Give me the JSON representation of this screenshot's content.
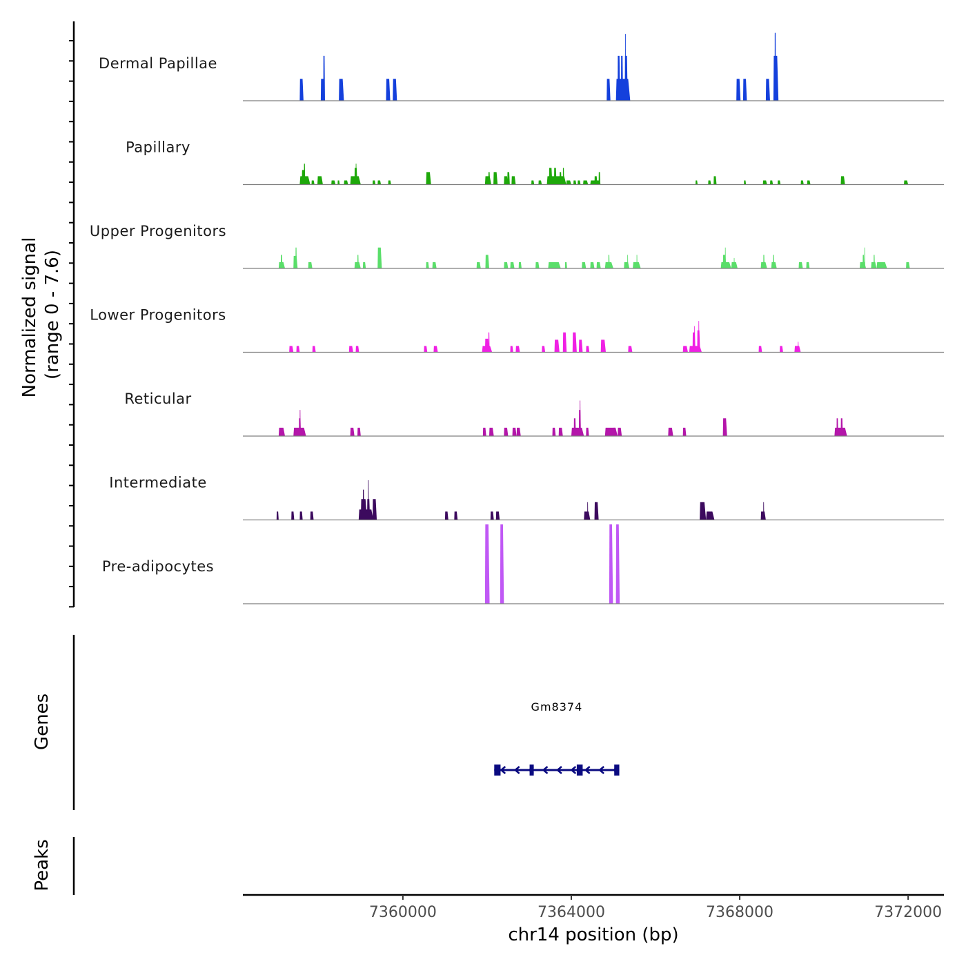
{
  "chart_data": {
    "type": "area",
    "title": "",
    "xlabel": "chr14 position (bp)",
    "ylabel": "Normalized signal\n(range 0 - 7.6)",
    "ylabel_lines": [
      "Normalized signal",
      "(range 0 - 7.6)"
    ],
    "ylim": [
      0,
      7.6
    ],
    "xlim": [
      7356200,
      7372850
    ],
    "x_ticks": [
      7360000,
      7364000,
      7368000,
      7372000
    ],
    "x_tick_labels": [
      "7360000",
      "7364000",
      "7368000",
      "7372000"
    ],
    "grid": false,
    "legend": "none",
    "tracks": [
      {
        "name": "Dermal Papillae",
        "color": "#1440dc",
        "peaks": [
          [
            7357550,
            7357640,
            2.1
          ],
          [
            7358050,
            7358140,
            2.1
          ],
          [
            7358110,
            7358150,
            4.3
          ],
          [
            7358480,
            7358600,
            2.1
          ],
          [
            7359600,
            7359700,
            2.1
          ],
          [
            7359760,
            7359860,
            2.1
          ],
          [
            7364840,
            7364930,
            2.1
          ],
          [
            7365060,
            7365400,
            2.1
          ],
          [
            7365100,
            7365160,
            4.3
          ],
          [
            7365180,
            7365230,
            4.3
          ],
          [
            7365270,
            7365340,
            4.3
          ],
          [
            7365280,
            7365300,
            6.4
          ],
          [
            7367920,
            7368020,
            2.1
          ],
          [
            7368080,
            7368170,
            2.1
          ],
          [
            7368620,
            7368720,
            2.1
          ],
          [
            7368800,
            7368920,
            4.3
          ],
          [
            7368830,
            7368860,
            6.5
          ]
        ]
      },
      {
        "name": "Papillary",
        "color": "#1ea80a",
        "peaks": [
          [
            7357550,
            7357800,
            0.8
          ],
          [
            7357600,
            7357680,
            1.4
          ],
          [
            7357650,
            7357680,
            2.0
          ],
          [
            7357830,
            7357900,
            0.4
          ],
          [
            7357970,
            7358100,
            0.8
          ],
          [
            7358300,
            7358400,
            0.4
          ],
          [
            7358450,
            7358500,
            0.4
          ],
          [
            7358600,
            7358700,
            0.4
          ],
          [
            7358750,
            7359000,
            0.8
          ],
          [
            7358850,
            7358920,
            1.6
          ],
          [
            7358880,
            7358900,
            2.0
          ],
          [
            7359280,
            7359350,
            0.4
          ],
          [
            7359400,
            7359480,
            0.4
          ],
          [
            7359650,
            7359720,
            0.4
          ],
          [
            7360550,
            7360670,
            1.2
          ],
          [
            7361950,
            7362100,
            0.8
          ],
          [
            7362030,
            7362070,
            1.2
          ],
          [
            7362150,
            7362250,
            1.2
          ],
          [
            7362400,
            7362500,
            0.8
          ],
          [
            7362480,
            7362540,
            1.2
          ],
          [
            7362580,
            7362680,
            0.8
          ],
          [
            7363050,
            7363120,
            0.4
          ],
          [
            7363220,
            7363300,
            0.4
          ],
          [
            7363420,
            7363880,
            0.8
          ],
          [
            7363470,
            7363550,
            1.6
          ],
          [
            7363590,
            7363650,
            1.6
          ],
          [
            7363720,
            7363770,
            1.2
          ],
          [
            7363800,
            7363830,
            1.6
          ],
          [
            7363880,
            7364000,
            0.4
          ],
          [
            7364050,
            7364120,
            0.4
          ],
          [
            7364150,
            7364220,
            0.4
          ],
          [
            7364280,
            7364400,
            0.4
          ],
          [
            7364450,
            7364700,
            0.4
          ],
          [
            7364550,
            7364620,
            0.8
          ],
          [
            7364650,
            7364690,
            1.2
          ],
          [
            7366950,
            7367000,
            0.4
          ],
          [
            7367250,
            7367320,
            0.4
          ],
          [
            7367380,
            7367450,
            0.8
          ],
          [
            7368100,
            7368150,
            0.4
          ],
          [
            7368550,
            7368650,
            0.4
          ],
          [
            7368720,
            7368790,
            0.4
          ],
          [
            7368900,
            7368970,
            0.4
          ],
          [
            7369450,
            7369520,
            0.4
          ],
          [
            7369600,
            7369680,
            0.4
          ],
          [
            7370400,
            7370500,
            0.8
          ],
          [
            7371900,
            7372000,
            0.4
          ]
        ]
      },
      {
        "name": "Upper Progenitors",
        "color": "#5ade6a",
        "peaks": [
          [
            7357050,
            7357200,
            0.6
          ],
          [
            7357100,
            7357140,
            1.3
          ],
          [
            7357400,
            7357500,
            1.2
          ],
          [
            7357450,
            7357480,
            2.0
          ],
          [
            7357750,
            7357850,
            0.6
          ],
          [
            7358850,
            7359000,
            0.6
          ],
          [
            7358920,
            7358950,
            1.3
          ],
          [
            7359050,
            7359120,
            0.6
          ],
          [
            7359400,
            7359500,
            2.0
          ],
          [
            7360550,
            7360620,
            0.6
          ],
          [
            7360700,
            7360800,
            0.6
          ],
          [
            7361750,
            7361850,
            0.6
          ],
          [
            7361960,
            7362050,
            1.3
          ],
          [
            7362400,
            7362500,
            0.6
          ],
          [
            7362550,
            7362650,
            0.6
          ],
          [
            7362750,
            7362820,
            0.6
          ],
          [
            7363150,
            7363240,
            0.6
          ],
          [
            7363450,
            7363750,
            0.6
          ],
          [
            7363850,
            7363900,
            0.6
          ],
          [
            7364250,
            7364350,
            0.6
          ],
          [
            7364450,
            7364550,
            0.6
          ],
          [
            7364600,
            7364700,
            0.6
          ],
          [
            7364800,
            7365000,
            0.6
          ],
          [
            7364880,
            7364910,
            1.3
          ],
          [
            7365250,
            7365380,
            0.6
          ],
          [
            7365330,
            7365350,
            1.3
          ],
          [
            7365460,
            7365650,
            0.6
          ],
          [
            7365550,
            7365570,
            1.3
          ],
          [
            7367550,
            7367800,
            0.6
          ],
          [
            7367600,
            7367680,
            1.3
          ],
          [
            7367650,
            7367670,
            2.0
          ],
          [
            7367800,
            7367950,
            0.6
          ],
          [
            7367860,
            7367880,
            1.0
          ],
          [
            7368500,
            7368650,
            0.6
          ],
          [
            7368560,
            7368590,
            1.3
          ],
          [
            7368750,
            7368880,
            0.6
          ],
          [
            7368790,
            7368820,
            1.3
          ],
          [
            7369400,
            7369500,
            0.6
          ],
          [
            7369580,
            7369660,
            0.6
          ],
          [
            7370850,
            7371000,
            0.6
          ],
          [
            7370920,
            7370960,
            1.3
          ],
          [
            7370960,
            7370980,
            2.0
          ],
          [
            7371120,
            7371250,
            0.6
          ],
          [
            7371180,
            7371210,
            1.3
          ],
          [
            7371250,
            7371500,
            0.6
          ],
          [
            7371950,
            7372040,
            0.6
          ]
        ]
      },
      {
        "name": "Lower Progenitors",
        "color": "#f020e4",
        "peaks": [
          [
            7357300,
            7357400,
            0.6
          ],
          [
            7357470,
            7357550,
            0.6
          ],
          [
            7357850,
            7357930,
            0.6
          ],
          [
            7358720,
            7358820,
            0.6
          ],
          [
            7358880,
            7358960,
            0.6
          ],
          [
            7360500,
            7360580,
            0.6
          ],
          [
            7360730,
            7360830,
            0.6
          ],
          [
            7361880,
            7362120,
            0.6
          ],
          [
            7361950,
            7362050,
            1.3
          ],
          [
            7362030,
            7362060,
            1.9
          ],
          [
            7362550,
            7362620,
            0.6
          ],
          [
            7362680,
            7362780,
            0.6
          ],
          [
            7363300,
            7363380,
            0.6
          ],
          [
            7363600,
            7363720,
            1.2
          ],
          [
            7363800,
            7363890,
            1.9
          ],
          [
            7364030,
            7364130,
            1.9
          ],
          [
            7364180,
            7364270,
            1.2
          ],
          [
            7364350,
            7364430,
            0.6
          ],
          [
            7364700,
            7364820,
            1.2
          ],
          [
            7365350,
            7365450,
            0.6
          ],
          [
            7366650,
            7366770,
            0.6
          ],
          [
            7366800,
            7367100,
            0.6
          ],
          [
            7366880,
            7366950,
            1.9
          ],
          [
            7366920,
            7366940,
            2.5
          ],
          [
            7366990,
            7367060,
            2.1
          ],
          [
            7367020,
            7367040,
            3.0
          ],
          [
            7368450,
            7368530,
            0.6
          ],
          [
            7368950,
            7369030,
            0.6
          ],
          [
            7369300,
            7369450,
            0.6
          ],
          [
            7369380,
            7369400,
            1.0
          ]
        ]
      },
      {
        "name": "Reticular",
        "color": "#b416aa",
        "peaks": [
          [
            7357050,
            7357200,
            0.8
          ],
          [
            7357400,
            7357700,
            0.8
          ],
          [
            7357530,
            7357580,
            1.7
          ],
          [
            7357550,
            7357570,
            2.5
          ],
          [
            7358750,
            7358850,
            0.8
          ],
          [
            7358920,
            7359000,
            0.8
          ],
          [
            7361900,
            7361980,
            0.8
          ],
          [
            7362050,
            7362160,
            0.8
          ],
          [
            7362400,
            7362500,
            0.8
          ],
          [
            7362600,
            7362700,
            0.8
          ],
          [
            7362700,
            7362800,
            0.8
          ],
          [
            7363550,
            7363630,
            0.8
          ],
          [
            7363700,
            7363800,
            0.8
          ],
          [
            7364000,
            7364300,
            0.8
          ],
          [
            7364060,
            7364110,
            1.7
          ],
          [
            7364180,
            7364230,
            2.5
          ],
          [
            7364200,
            7364220,
            3.4
          ],
          [
            7364350,
            7364420,
            0.8
          ],
          [
            7364800,
            7365100,
            0.8
          ],
          [
            7365000,
            7365060,
            0.8
          ],
          [
            7365100,
            7365200,
            0.8
          ],
          [
            7366300,
            7366420,
            0.8
          ],
          [
            7366650,
            7366730,
            0.8
          ],
          [
            7367600,
            7367700,
            1.7
          ],
          [
            7370250,
            7370550,
            0.8
          ],
          [
            7370300,
            7370340,
            1.7
          ],
          [
            7370400,
            7370450,
            1.7
          ]
        ]
      },
      {
        "name": "Intermediate",
        "color": "#3c0a5e",
        "peaks": [
          [
            7357000,
            7357050,
            0.8
          ],
          [
            7357350,
            7357420,
            0.8
          ],
          [
            7357550,
            7357620,
            0.8
          ],
          [
            7357800,
            7357880,
            0.8
          ],
          [
            7358950,
            7359300,
            1.0
          ],
          [
            7359000,
            7359150,
            2.0
          ],
          [
            7359050,
            7359080,
            2.9
          ],
          [
            7359150,
            7359220,
            2.0
          ],
          [
            7359170,
            7359190,
            3.8
          ],
          [
            7359280,
            7359380,
            2.0
          ],
          [
            7361000,
            7361080,
            0.8
          ],
          [
            7361220,
            7361300,
            0.8
          ],
          [
            7362080,
            7362160,
            0.8
          ],
          [
            7362210,
            7362300,
            0.8
          ],
          [
            7364300,
            7364450,
            0.8
          ],
          [
            7364380,
            7364400,
            1.7
          ],
          [
            7364550,
            7364650,
            1.7
          ],
          [
            7367050,
            7367200,
            1.7
          ],
          [
            7367200,
            7367400,
            0.8
          ],
          [
            7368500,
            7368620,
            0.8
          ],
          [
            7368560,
            7368580,
            1.7
          ]
        ]
      },
      {
        "name": "Pre-adipocytes",
        "color": "#c058f5",
        "peaks": [
          [
            7361950,
            7362060,
            7.6
          ],
          [
            7362310,
            7362400,
            7.6
          ],
          [
            7364900,
            7364990,
            7.6
          ],
          [
            7365060,
            7365150,
            7.6
          ]
        ]
      }
    ],
    "genes_track": {
      "label": "Genes",
      "genes": [
        {
          "name": "Gm8374",
          "start": 7362170,
          "end": 7365140,
          "strand": "-",
          "color": "#0a0a80",
          "exons": [
            [
              7362170,
              7362320
            ],
            [
              7363010,
              7363100
            ],
            [
              7364130,
              7364270
            ],
            [
              7365020,
              7365140
            ]
          ]
        }
      ]
    },
    "peaks_track": {
      "label": "Peaks",
      "peaks": []
    }
  }
}
